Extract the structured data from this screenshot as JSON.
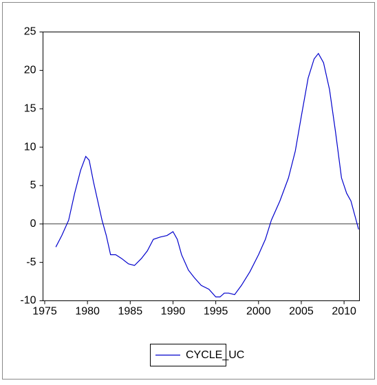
{
  "chart_data": {
    "type": "line",
    "x": [
      1976.3,
      1977,
      1977.8,
      1978.5,
      1979.2,
      1979.8,
      1980.2,
      1980.7,
      1981.2,
      1981.7,
      1982.2,
      1982.7,
      1983.3,
      1984,
      1984.8,
      1985.5,
      1986.3,
      1987,
      1987.7,
      1988.5,
      1989.3,
      1990,
      1990.5,
      1991,
      1991.8,
      1992.5,
      1993.3,
      1994.2,
      1995,
      1995.5,
      1996,
      1996.5,
      1997.2,
      1998,
      1999,
      2000,
      2000.8,
      2001.5,
      2002.5,
      2003.5,
      2004.3,
      2005,
      2005.8,
      2006.5,
      2007,
      2007.6,
      2008.3,
      2009,
      2009.7,
      2010.3,
      2010.8,
      2011.7
    ],
    "series": [
      {
        "name": "CYCLE_UC",
        "color": "#0000cc",
        "values": [
          -3,
          -1.5,
          0.5,
          4,
          7,
          8.8,
          8.3,
          5.5,
          3,
          0.5,
          -1.5,
          -4,
          -4,
          -4.5,
          -5.2,
          -5.4,
          -4.5,
          -3.5,
          -2,
          -1.7,
          -1.5,
          -1,
          -2,
          -4,
          -6,
          -7,
          -8,
          -8.5,
          -9.5,
          -9.5,
          -9,
          -9,
          -9.2,
          -8,
          -6.2,
          -4,
          -2,
          0.5,
          3,
          6,
          9.5,
          14,
          19,
          21.5,
          22.2,
          21,
          17.5,
          12,
          6,
          4,
          3,
          -0.7
        ]
      }
    ],
    "xlim": [
      1974.8,
      2011.8
    ],
    "xticks": [
      1975,
      1980,
      1985,
      1990,
      1995,
      2000,
      2005,
      2010
    ],
    "ylim": [
      -10,
      25
    ],
    "yticks": [
      -10,
      -5,
      0,
      5,
      10,
      15,
      20,
      25
    ],
    "zero_line": true,
    "legend": "bottom"
  }
}
